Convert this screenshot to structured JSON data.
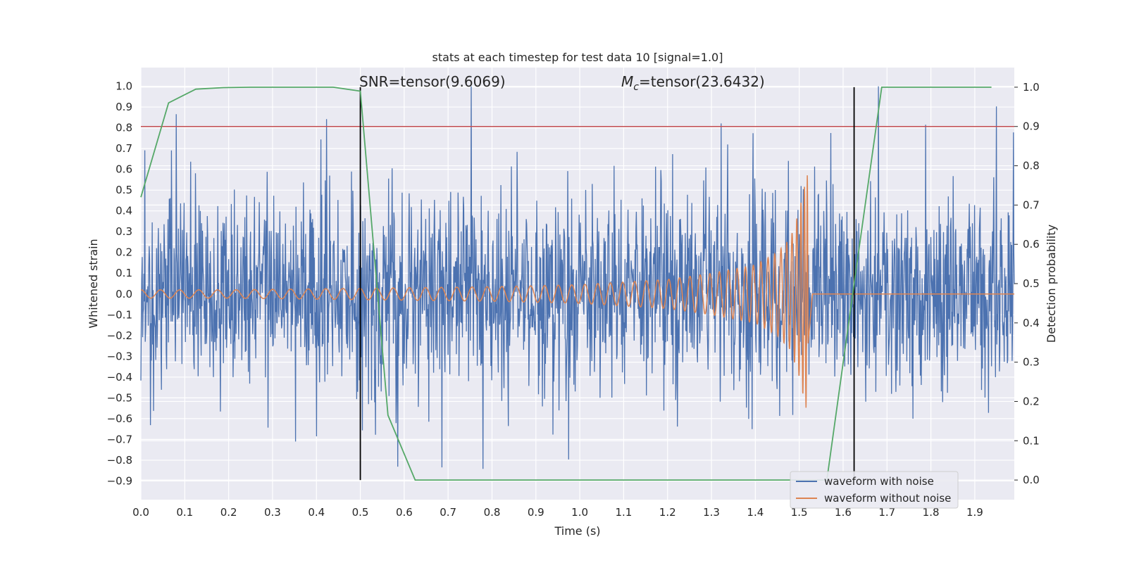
{
  "chart_data": {
    "type": "line",
    "title": "stats at each timestep for test data 10 [signal=1.0]",
    "xlabel": "Time (s)",
    "ylabel": "Whitened strain",
    "y2label": "Detection probability",
    "xlim": [
      0.0,
      1.99
    ],
    "ylim": [
      -0.99,
      1.09
    ],
    "y2lim": [
      -0.05,
      1.05
    ],
    "xticks": [
      "0.0",
      "0.1",
      "0.2",
      "0.3",
      "0.4",
      "0.5",
      "0.6",
      "0.7",
      "0.8",
      "0.9",
      "1.0",
      "1.1",
      "1.2",
      "1.3",
      "1.4",
      "1.5",
      "1.6",
      "1.7",
      "1.8",
      "1.9"
    ],
    "yticks": [
      "1.0",
      "0.9",
      "0.8",
      "0.7",
      "0.6",
      "0.5",
      "0.4",
      "0.3",
      "0.2",
      "0.1",
      "0.0",
      "−0.1",
      "−0.2",
      "−0.3",
      "−0.4",
      "−0.5",
      "−0.6",
      "−0.7",
      "−0.8",
      "−0.9"
    ],
    "y2ticks": [
      "1.0",
      "0.9",
      "0.8",
      "0.7",
      "0.6",
      "0.5",
      "0.4",
      "0.3",
      "0.2",
      "0.1",
      "0.0"
    ],
    "grid": true,
    "legend_position": "bottom-right",
    "annotations": {
      "snr": "SNR=tensor(9.6069)",
      "mc_symbol": "M",
      "mc_sub": "c",
      "mc_value": "=tensor(23.6432)"
    },
    "series": [
      {
        "name": "waveform with noise",
        "color": "#4c72b0",
        "axis": "left",
        "description": "noisy whitened strain, roughly 2000 samples, values spanning about -0.9 to 1.0",
        "sample_x": [
          0.0,
          0.1,
          0.2,
          0.3,
          0.4,
          0.5,
          0.6,
          0.7,
          0.8,
          0.9,
          1.0,
          1.1,
          1.2,
          1.3,
          1.4,
          1.5,
          1.6,
          1.7,
          1.8,
          1.9
        ],
        "approx_range": [
          -0.9,
          1.0
        ]
      },
      {
        "name": "waveform without noise",
        "color": "#dd8452",
        "axis": "left",
        "chirp": {
          "t_start": 0.0,
          "t_merge": 1.52,
          "t_end": 1.99,
          "amplitude_start": 0.02,
          "amplitude_peak": 0.59,
          "x": [
            0.0,
            0.2,
            0.4,
            0.6,
            0.8,
            1.0,
            1.2,
            1.3,
            1.4,
            1.45,
            1.48,
            1.5,
            1.51,
            1.52,
            1.53,
            1.99
          ],
          "envelope": [
            0.02,
            0.02,
            0.025,
            0.03,
            0.035,
            0.045,
            0.07,
            0.1,
            0.14,
            0.2,
            0.27,
            0.4,
            0.5,
            0.59,
            0.0,
            0.0
          ]
        }
      },
      {
        "name": "detection probability",
        "color": "#55a868",
        "axis": "right",
        "x": [
          0.0,
          0.063,
          0.125,
          0.188,
          0.25,
          0.313,
          0.375,
          0.438,
          0.5,
          0.563,
          0.625,
          0.688,
          0.75,
          0.813,
          0.875,
          0.938,
          1.0,
          1.063,
          1.125,
          1.188,
          1.25,
          1.313,
          1.375,
          1.438,
          1.5,
          1.563,
          1.625,
          1.688,
          1.75,
          1.813,
          1.875,
          1.938
        ],
        "y": [
          0.72,
          0.96,
          0.995,
          0.999,
          1.0,
          1.0,
          1.0,
          1.0,
          0.99,
          0.165,
          0.0,
          0.0,
          0.0,
          0.0,
          0.0,
          0.0,
          0.0,
          0.0,
          0.0,
          0.0,
          0.0,
          0.0,
          0.0,
          0.0,
          0.0,
          0.0,
          0.5,
          1.0,
          1.0,
          1.0,
          1.0,
          1.0
        ]
      }
    ],
    "threshold_line": {
      "y2": 0.9,
      "color": "#c44e52"
    },
    "vertical_lines": [
      {
        "x": 0.5,
        "y2_from": 0.0,
        "y2_to": 1.0,
        "color": "#000000"
      },
      {
        "x": 1.625,
        "y2_from": 0.0,
        "y2_to": 1.0,
        "color": "#000000"
      }
    ]
  }
}
